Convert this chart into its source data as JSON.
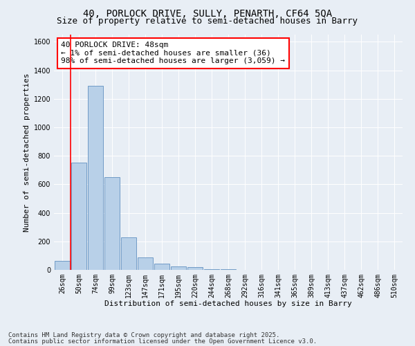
{
  "title1": "40, PORLOCK DRIVE, SULLY, PENARTH, CF64 5QA",
  "title2": "Size of property relative to semi-detached houses in Barry",
  "xlabel": "Distribution of semi-detached houses by size in Barry",
  "ylabel": "Number of semi-detached properties",
  "categories": [
    "26sqm",
    "50sqm",
    "74sqm",
    "99sqm",
    "123sqm",
    "147sqm",
    "171sqm",
    "195sqm",
    "220sqm",
    "244sqm",
    "268sqm",
    "292sqm",
    "316sqm",
    "341sqm",
    "365sqm",
    "389sqm",
    "413sqm",
    "437sqm",
    "462sqm",
    "486sqm",
    "510sqm"
  ],
  "values": [
    65,
    750,
    1290,
    650,
    230,
    85,
    45,
    25,
    20,
    5,
    5,
    0,
    0,
    0,
    0,
    0,
    0,
    0,
    0,
    0,
    0
  ],
  "bar_color": "#b8d0e8",
  "bar_edge_color": "#6090c0",
  "red_line_x": 0.5,
  "annotation_title": "40 PORLOCK DRIVE: 48sqm",
  "annotation_line1": "← 1% of semi-detached houses are smaller (36)",
  "annotation_line2": "98% of semi-detached houses are larger (3,059) →",
  "annotation_box_color": "white",
  "annotation_box_edge_color": "red",
  "ylim": [
    0,
    1650
  ],
  "yticks": [
    0,
    200,
    400,
    600,
    800,
    1000,
    1200,
    1400,
    1600
  ],
  "background_color": "#e8eef5",
  "footer1": "Contains HM Land Registry data © Crown copyright and database right 2025.",
  "footer2": "Contains public sector information licensed under the Open Government Licence v3.0.",
  "title1_fontsize": 10,
  "title2_fontsize": 9,
  "axis_label_fontsize": 8,
  "tick_fontsize": 7,
  "annotation_fontsize": 8,
  "footer_fontsize": 6.5
}
